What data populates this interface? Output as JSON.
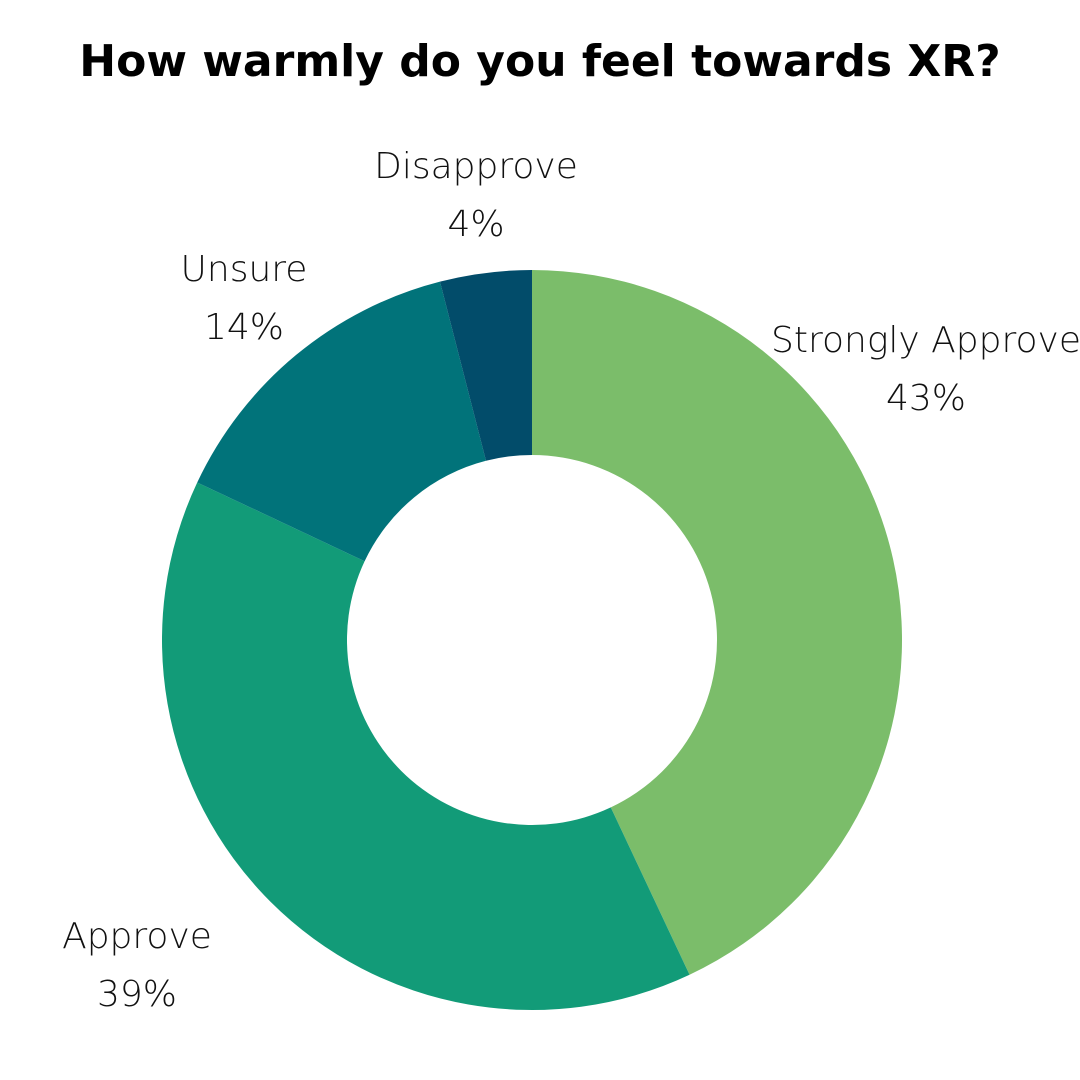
{
  "chart_data": {
    "type": "pie",
    "variant": "donut",
    "title": "How warmly do you feel towards XR?",
    "start_angle_deg": 0,
    "direction": "clockwise",
    "slices": [
      {
        "label": "Strongly Approve",
        "value": 43,
        "value_label": "43%",
        "color": "#7bbd6a"
      },
      {
        "label": "Approve",
        "value": 39,
        "value_label": "39%",
        "color": "#129b78"
      },
      {
        "label": "Unsure",
        "value": 14,
        "value_label": "14%",
        "color": "#01737a"
      },
      {
        "label": "Disapprove",
        "value": 4,
        "value_label": "4%",
        "color": "#024c6a"
      }
    ],
    "legend": "none"
  }
}
